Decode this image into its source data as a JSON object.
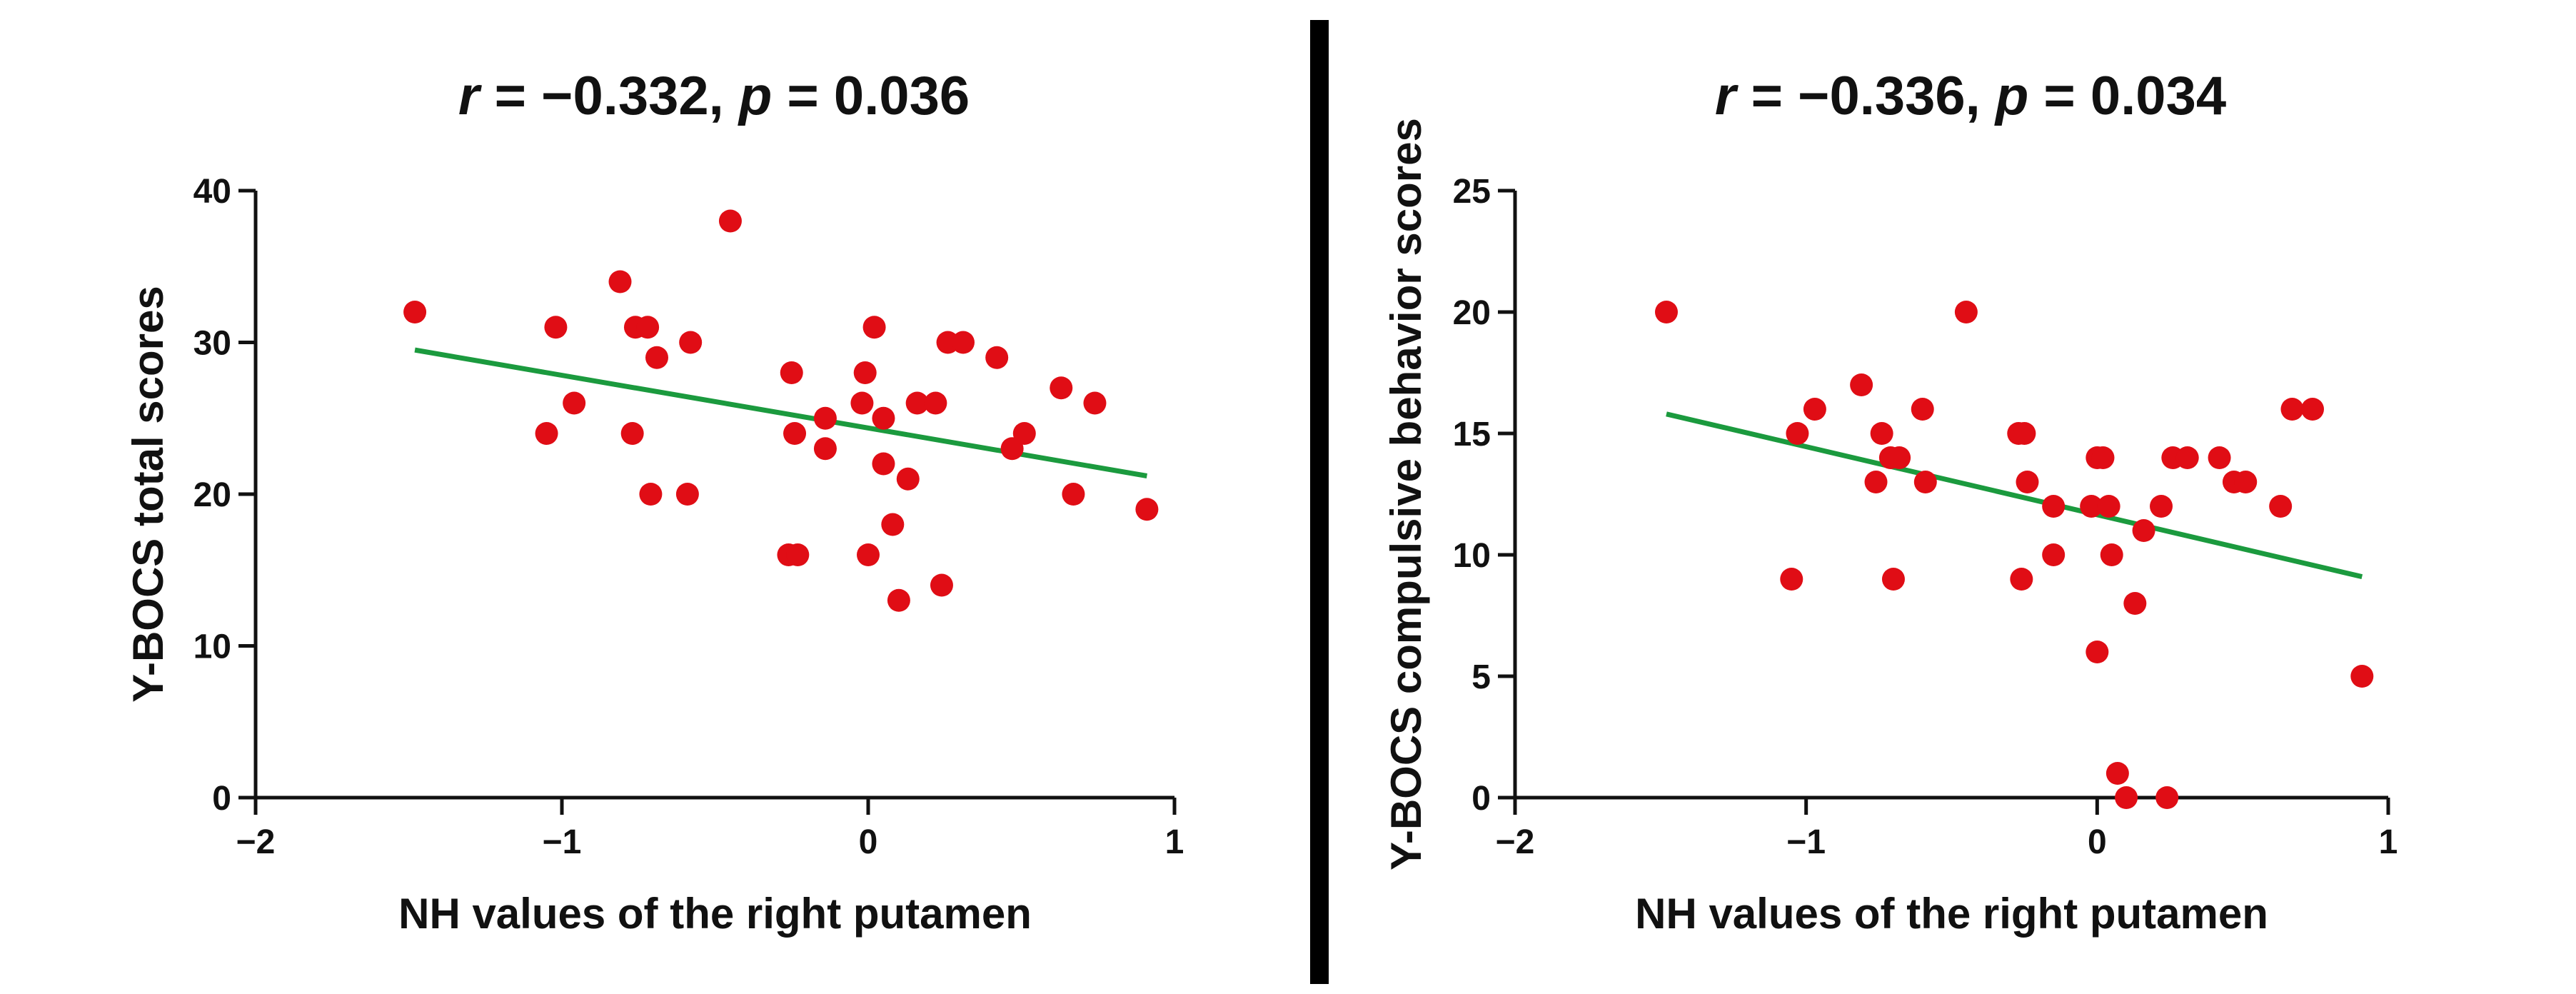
{
  "colors": {
    "point": "#e00d15",
    "fit_line": "#1b9a3e",
    "axis": "#111111",
    "divider": "#000000",
    "background": "#ffffff"
  },
  "chart_data": [
    {
      "type": "scatter",
      "title": {
        "r_symbol": "r",
        "r_value": " = −0.332, ",
        "p_symbol": "p",
        "p_value": " = 0.036"
      },
      "xlabel": "NH values of the right putamen",
      "ylabel": "Y-BOCS total scores",
      "xlim": [
        -2,
        1
      ],
      "ylim": [
        0,
        40
      ],
      "xticks": [
        -2,
        -1,
        0,
        1
      ],
      "xtick_labels": [
        "−2",
        "−1",
        "0",
        "1"
      ],
      "yticks": [
        0,
        10,
        20,
        30,
        40
      ],
      "ytick_labels": [
        "0",
        "10",
        "20",
        "30",
        "40"
      ],
      "points": [
        [
          -1.48,
          32
        ],
        [
          -1.05,
          24
        ],
        [
          -1.02,
          31
        ],
        [
          -0.96,
          26
        ],
        [
          -0.81,
          34
        ],
        [
          -0.77,
          24
        ],
        [
          -0.76,
          31
        ],
        [
          -0.72,
          31
        ],
        [
          -0.71,
          20
        ],
        [
          -0.69,
          29
        ],
        [
          -0.59,
          20
        ],
        [
          -0.58,
          30
        ],
        [
          -0.45,
          38
        ],
        [
          -0.26,
          16
        ],
        [
          -0.25,
          28
        ],
        [
          -0.24,
          24
        ],
        [
          -0.23,
          16
        ],
        [
          -0.14,
          25
        ],
        [
          -0.14,
          23
        ],
        [
          -0.02,
          26
        ],
        [
          -0.01,
          28
        ],
        [
          0.0,
          16
        ],
        [
          0.02,
          31
        ],
        [
          0.05,
          25
        ],
        [
          0.05,
          22
        ],
        [
          0.08,
          18
        ],
        [
          0.1,
          13
        ],
        [
          0.13,
          21
        ],
        [
          0.16,
          26
        ],
        [
          0.22,
          26
        ],
        [
          0.24,
          14
        ],
        [
          0.26,
          30
        ],
        [
          0.31,
          30
        ],
        [
          0.42,
          29
        ],
        [
          0.47,
          23
        ],
        [
          0.51,
          24
        ],
        [
          0.63,
          27
        ],
        [
          0.67,
          20
        ],
        [
          0.74,
          26
        ],
        [
          0.91,
          19
        ]
      ],
      "fit_line": {
        "x": [
          -1.48,
          0.91
        ],
        "y": [
          29.5,
          21.2
        ]
      }
    },
    {
      "type": "scatter",
      "title": {
        "r_symbol": "r",
        "r_value": " = −0.336, ",
        "p_symbol": "p",
        "p_value": " = 0.034"
      },
      "xlabel": "NH values of the right putamen",
      "ylabel": "Y-BOCS compulsive behavior scores",
      "xlim": [
        -2,
        1
      ],
      "ylim": [
        0,
        25
      ],
      "xticks": [
        -2,
        -1,
        0,
        1
      ],
      "xtick_labels": [
        "−2",
        "−1",
        "0",
        "1"
      ],
      "yticks": [
        0,
        5,
        10,
        15,
        20,
        25
      ],
      "ytick_labels": [
        "0",
        "5",
        "10",
        "15",
        "20",
        "25"
      ],
      "points": [
        [
          -1.48,
          20
        ],
        [
          -1.05,
          9
        ],
        [
          -1.03,
          15
        ],
        [
          -0.97,
          16
        ],
        [
          -0.81,
          17
        ],
        [
          -0.76,
          13
        ],
        [
          -0.74,
          15
        ],
        [
          -0.71,
          14
        ],
        [
          -0.7,
          9
        ],
        [
          -0.68,
          14
        ],
        [
          -0.6,
          16
        ],
        [
          -0.59,
          13
        ],
        [
          -0.45,
          20
        ],
        [
          -0.27,
          15
        ],
        [
          -0.26,
          9
        ],
        [
          -0.25,
          15
        ],
        [
          -0.24,
          13
        ],
        [
          -0.15,
          12
        ],
        [
          -0.15,
          10
        ],
        [
          -0.02,
          12
        ],
        [
          0.0,
          14
        ],
        [
          0.0,
          6
        ],
        [
          0.02,
          14
        ],
        [
          0.04,
          12
        ],
        [
          0.05,
          10
        ],
        [
          0.07,
          1
        ],
        [
          0.1,
          0
        ],
        [
          0.13,
          8
        ],
        [
          0.16,
          11
        ],
        [
          0.22,
          12
        ],
        [
          0.24,
          0
        ],
        [
          0.26,
          14
        ],
        [
          0.31,
          14
        ],
        [
          0.42,
          14
        ],
        [
          0.47,
          13
        ],
        [
          0.51,
          13
        ],
        [
          0.63,
          12
        ],
        [
          0.67,
          16
        ],
        [
          0.74,
          16
        ],
        [
          0.91,
          5
        ]
      ],
      "fit_line": {
        "x": [
          -1.48,
          0.91
        ],
        "y": [
          15.8,
          9.1
        ]
      }
    }
  ]
}
